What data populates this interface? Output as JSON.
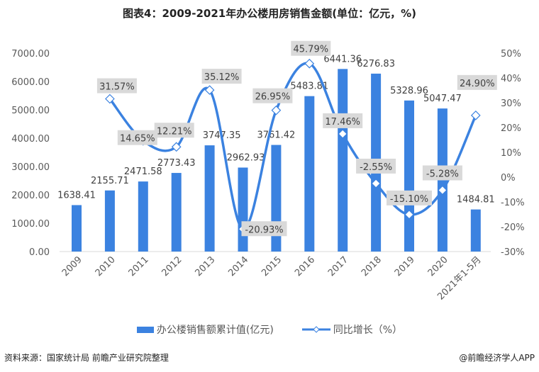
{
  "title": "图表4：2009-2021年办公楼用房销售金额(单位：亿元，%)",
  "chart_data": {
    "type": "bar+line",
    "categories": [
      "2009",
      "2010",
      "2011",
      "2012",
      "2013",
      "2014",
      "2015",
      "2016",
      "2017",
      "2018",
      "2019",
      "2020",
      "2021年1-5月"
    ],
    "series": [
      {
        "name": "办公楼销售额累计值(亿元)",
        "type": "bar",
        "axis": "left",
        "color": "#3b82e0",
        "values": [
          1638.41,
          2155.71,
          2471.58,
          2773.43,
          3747.35,
          2962.93,
          3761.42,
          5483.81,
          6441.36,
          6276.83,
          5328.96,
          5047.47,
          1484.81
        ],
        "labels": [
          "1638.41",
          "2155.71",
          "2471.58",
          "2773.43",
          "3747.35",
          "2962.93",
          "3761.42",
          "5483.81",
          "6441.36",
          "6276.83",
          "5328.96",
          "5047.47",
          "1484.81"
        ]
      },
      {
        "name": "同比增长（%）",
        "type": "line",
        "axis": "right",
        "color": "#3b82e0",
        "values": [
          null,
          31.57,
          14.65,
          12.21,
          35.12,
          -20.93,
          26.95,
          45.79,
          17.46,
          -2.55,
          -15.1,
          -5.28,
          24.9
        ],
        "labels": [
          "",
          "31.57%",
          "14.65%",
          "12.21%",
          "35.12%",
          "-20.93%",
          "26.95%",
          "45.79%",
          "17.46%",
          "-2.55%",
          "-15.10%",
          "-5.28%",
          "24.90%"
        ]
      }
    ],
    "y_left": {
      "range": [
        0,
        7000
      ],
      "ticks": [
        "0.00",
        "1000.00",
        "2000.00",
        "3000.00",
        "4000.00",
        "5000.00",
        "6000.00",
        "7000.00"
      ]
    },
    "y_right": {
      "range": [
        -30,
        50
      ],
      "ticks": [
        "-30%",
        "-20%",
        "-10%",
        "0%",
        "10%",
        "20%",
        "30%",
        "40%",
        "50%"
      ]
    },
    "grid": false,
    "legend_position": "bottom"
  },
  "legend": {
    "bar": "办公楼销售额累计值(亿元)",
    "line": "同比增长（%）"
  },
  "source": "资料来源：国家统计局 前瞻产业研究院整理",
  "credit": "@前瞻经济学人APP"
}
